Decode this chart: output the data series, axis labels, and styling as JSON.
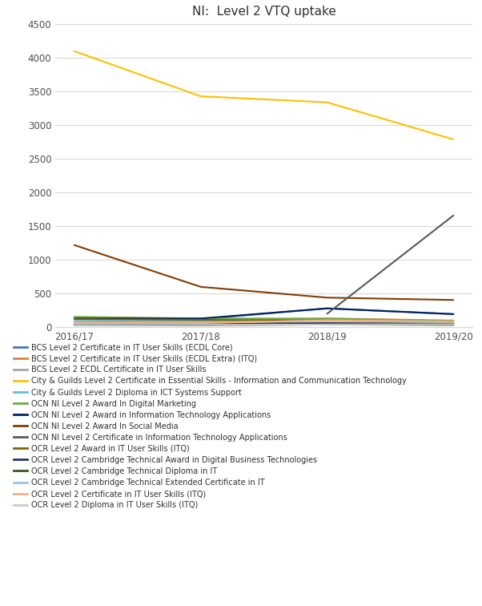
{
  "title": "NI:  Level 2 VTQ uptake",
  "x_labels": [
    "2016/17",
    "2017/18",
    "2018/19",
    "2019/20"
  ],
  "x_positions": [
    0,
    1,
    2,
    3
  ],
  "ylim": [
    0,
    4500
  ],
  "yticks": [
    0,
    500,
    1000,
    1500,
    2000,
    2500,
    3000,
    3500,
    4000,
    4500
  ],
  "series": [
    {
      "label": "BCS Level 2 Certificate in IT User Skills (ECDL Core)",
      "color": "#4472C4",
      "values": [
        120,
        120,
        280,
        195
      ]
    },
    {
      "label": "BCS Level 2 Certificate in IT User Skills (ECDL Extra) (ITQ)",
      "color": "#ED7D31",
      "values": [
        70,
        80,
        130,
        100
      ]
    },
    {
      "label": "BCS Level 2 ECDL Certificate in IT User Skills",
      "color": "#A5A5A5",
      "values": [
        50,
        60,
        70,
        55
      ]
    },
    {
      "label": "City & Guilds Level 2 Certificate in Essential Skills - Information and Communication Technology",
      "color": "#FFC000",
      "values": [
        4100,
        3430,
        3340,
        2790
      ]
    },
    {
      "label": "City & Guilds Level 2 Diploma in ICT Systems Support",
      "color": "#5BC2E7",
      "values": [
        90,
        90,
        120,
        85
      ]
    },
    {
      "label": "OCN NI Level 2 Award In Digital Marketing",
      "color": "#70AD47",
      "values": [
        155,
        130,
        130,
        90
      ]
    },
    {
      "label": "OCN NI Level 2 Award in Information Technology Applications",
      "color": "#002060",
      "values": [
        130,
        130,
        280,
        195
      ]
    },
    {
      "label": "OCN NI Level 2 Award In Social Media",
      "color": "#833C00",
      "values": [
        1220,
        600,
        440,
        405
      ]
    },
    {
      "label": "OCN NI Level 2 Certificate in Information Technology Applications",
      "color": "#595959",
      "values": [
        null,
        null,
        200,
        1660
      ]
    },
    {
      "label": "OCR Level 2 Award in IT User Skills (ITQ)",
      "color": "#806000",
      "values": [
        120,
        110,
        100,
        80
      ]
    },
    {
      "label": "OCR Level 2 Cambridge Technical Award in Digital Business Technologies",
      "color": "#203864",
      "values": [
        45,
        50,
        60,
        50
      ]
    },
    {
      "label": "OCR Level 2 Cambridge Technical Diploma in IT",
      "color": "#375623",
      "values": [
        30,
        30,
        40,
        35
      ]
    },
    {
      "label": "OCR Level 2 Cambridge Technical Extended Certificate in IT",
      "color": "#9DC3E6",
      "values": [
        55,
        65,
        100,
        80
      ]
    },
    {
      "label": "OCR Level 2 Certificate in IT User Skills (ITQ)",
      "color": "#F4B183",
      "values": [
        65,
        65,
        100,
        85
      ]
    },
    {
      "label": "OCR Level 2 Diploma in IT User Skills (ITQ)",
      "color": "#C9C9C9",
      "values": [
        30,
        35,
        40,
        45
      ]
    }
  ],
  "background_color": "#FFFFFF",
  "grid_color": "#D9D9D9",
  "title_fontsize": 11,
  "tick_fontsize": 8.5,
  "legend_fontsize": 7.0
}
